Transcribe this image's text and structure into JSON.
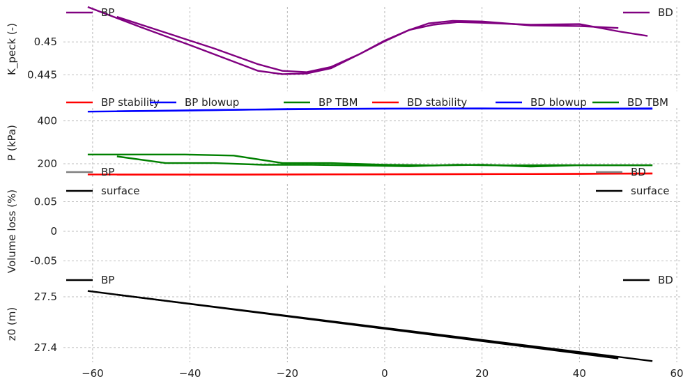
{
  "chart_data": [
    {
      "type": "line",
      "panel": "k_peck",
      "ylabel": "K_peck (-)",
      "ylim": [
        0.4425,
        0.4553
      ],
      "yticks": [
        0.445,
        0.45
      ],
      "ytick_labels": [
        "0.445",
        "0.45"
      ],
      "grid": true,
      "legend": [
        {
          "label": "BP",
          "placement": "top-left"
        },
        {
          "label": "BD",
          "placement": "top-right"
        }
      ],
      "series": [
        {
          "name": "BP",
          "color": "#800080",
          "x": [
            -61,
            -50,
            -40,
            -31,
            -26,
            -21,
            -16,
            -11,
            -5,
            0,
            5,
            9,
            14,
            20,
            30,
            40,
            48
          ],
          "y": [
            0.4553,
            0.4522,
            0.4495,
            0.447,
            0.4456,
            0.4451,
            0.4452,
            0.446,
            0.4482,
            0.4502,
            0.4518,
            0.4528,
            0.4532,
            0.4531,
            0.4525,
            0.4524,
            0.4521
          ]
        },
        {
          "name": "BD",
          "color": "#800080",
          "x": [
            -55,
            -45,
            -35,
            -26,
            -21,
            -16,
            -11,
            -5,
            0,
            5,
            10,
            15,
            20,
            30,
            40,
            48,
            54
          ],
          "y": [
            0.4538,
            0.4514,
            0.449,
            0.4466,
            0.4456,
            0.4454,
            0.4462,
            0.4482,
            0.4501,
            0.4518,
            0.4526,
            0.453,
            0.4529,
            0.4526,
            0.4527,
            0.4516,
            0.4509
          ]
        }
      ]
    },
    {
      "type": "line",
      "panel": "pressure",
      "ylabel": "P (kPa)",
      "ylim": [
        135,
        460
      ],
      "yticks": [
        200,
        400
      ],
      "ytick_labels": [
        "200",
        "400"
      ],
      "grid": true,
      "legend": [
        {
          "label": "BP stability",
          "color": "#ff0000"
        },
        {
          "label": "BP blowup",
          "color": "#0000ff"
        },
        {
          "label": "BP TBM",
          "color": "#008000"
        },
        {
          "label": "BD stability",
          "color": "#ff0000"
        },
        {
          "label": "BD blowup",
          "color": "#0000ff"
        },
        {
          "label": "BD TBM",
          "color": "#008000"
        }
      ],
      "series": [
        {
          "name": "BP stability",
          "color": "#ff0000",
          "x": [
            -61,
            -30,
            0,
            30,
            55
          ],
          "y": [
            150,
            149,
            151,
            152,
            154
          ]
        },
        {
          "name": "BP blowup",
          "color": "#0000ff",
          "x": [
            -61,
            -40,
            -20,
            0,
            20,
            40,
            55
          ],
          "y": [
            443,
            448,
            455,
            457,
            458,
            456,
            458
          ]
        },
        {
          "name": "BP TBM",
          "color": "#008000",
          "x": [
            -61,
            -41,
            -31,
            -21,
            -11,
            0,
            10,
            20,
            30,
            40,
            55
          ],
          "y": [
            243,
            243,
            238,
            203,
            203,
            195,
            192,
            195,
            187,
            193,
            193
          ]
        },
        {
          "name": "BD stability",
          "color": "#ff0000",
          "x": [
            -55,
            -20,
            10,
            40,
            55
          ],
          "y": [
            149,
            150,
            151,
            153,
            155
          ]
        },
        {
          "name": "BD blowup",
          "color": "#0000ff",
          "x": [
            -55,
            -30,
            0,
            30,
            55
          ],
          "y": [
            445,
            452,
            457,
            457,
            456
          ]
        },
        {
          "name": "BD TBM",
          "color": "#008000",
          "x": [
            -55,
            -45,
            -35,
            -25,
            -15,
            -5,
            5,
            15,
            25,
            35,
            45,
            55
          ],
          "y": [
            234,
            203,
            203,
            195,
            195,
            192,
            188,
            195,
            192,
            193,
            193,
            193
          ]
        }
      ]
    },
    {
      "type": "line",
      "panel": "volume_loss",
      "ylabel": "Volume loss (%)",
      "ylim": [
        -0.08,
        0.08
      ],
      "yticks": [
        -0.05,
        0,
        0.05
      ],
      "ytick_labels": [
        "-0.05",
        "0",
        "0.05"
      ],
      "grid": true,
      "legend": [
        {
          "label": "BP",
          "color": "#808080",
          "placement": "top-left"
        },
        {
          "label": "surface",
          "color": "#000000",
          "placement": "top-left"
        },
        {
          "label": "BD",
          "color": "#808080",
          "placement": "top-right"
        },
        {
          "label": "surface",
          "color": "#000000",
          "placement": "top-right"
        }
      ],
      "series": []
    },
    {
      "type": "line",
      "panel": "z0",
      "ylabel": "z0 (m)",
      "xlim": [
        -66,
        61
      ],
      "xticks": [
        -60,
        -40,
        -20,
        0,
        20,
        40,
        60
      ],
      "xtick_labels": [
        "−60",
        "−40",
        "−20",
        "0",
        "20",
        "40",
        "60"
      ],
      "ylim": [
        27.371,
        27.522
      ],
      "yticks": [
        27.4,
        27.5
      ],
      "ytick_labels": [
        "27.4",
        "27.5"
      ],
      "grid": true,
      "legend": [
        {
          "label": "BP",
          "color": "#000000",
          "placement": "top-left"
        },
        {
          "label": "BD",
          "color": "#000000",
          "placement": "top-right"
        }
      ],
      "series": [
        {
          "name": "BP",
          "color": "#000000",
          "x": [
            -61,
            48
          ],
          "y": [
            27.5115,
            27.3786
          ]
        },
        {
          "name": "BD",
          "color": "#000000",
          "x": [
            -55,
            55
          ],
          "y": [
            27.5042,
            27.3734
          ]
        }
      ]
    }
  ]
}
